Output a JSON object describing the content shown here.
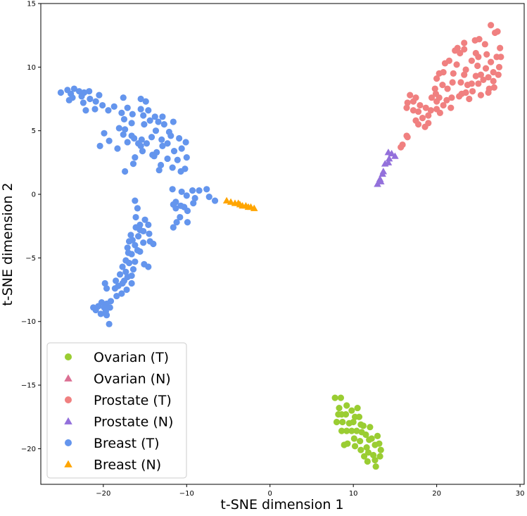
{
  "chart_data": {
    "type": "scatter",
    "title": "",
    "xlabel": "t-SNE dimension 1",
    "ylabel": "t-SNE dimension 2",
    "xlim": [
      -27.5,
      30.5
    ],
    "ylim": [
      -22.8,
      15
    ],
    "xticks": [
      -20,
      -10,
      0,
      10,
      20,
      30
    ],
    "yticks": [
      -20,
      -15,
      -10,
      -5,
      0,
      5,
      10,
      15
    ],
    "xtick_labels": [
      "−20",
      "−10",
      "0",
      "10",
      "20",
      "30"
    ],
    "ytick_labels": [
      "−20",
      "−15",
      "−10",
      "−5",
      "0",
      "5",
      "10",
      "15"
    ],
    "grid": false,
    "legend_position": "lower-left",
    "series": [
      {
        "name": "Ovarian (T)",
        "marker": "circle",
        "color": "#9acd32",
        "points": [
          [
            7.8,
            -16.0
          ],
          [
            8.5,
            -16.0
          ],
          [
            8.3,
            -16.8
          ],
          [
            9.2,
            -16.6
          ],
          [
            8.6,
            -17.3
          ],
          [
            9.8,
            -17.0
          ],
          [
            10.5,
            -16.8
          ],
          [
            8.2,
            -17.3
          ],
          [
            9.1,
            -17.3
          ],
          [
            10.2,
            -17.5
          ],
          [
            10.7,
            -17.5
          ],
          [
            8.0,
            -17.9
          ],
          [
            8.7,
            -17.9
          ],
          [
            9.5,
            -18.0
          ],
          [
            10.0,
            -17.9
          ],
          [
            10.9,
            -18.1
          ],
          [
            11.2,
            -18.2
          ],
          [
            9.2,
            -18.6
          ],
          [
            9.8,
            -18.6
          ],
          [
            10.4,
            -18.6
          ],
          [
            11.0,
            -18.7
          ],
          [
            12.0,
            -18.3
          ],
          [
            8.6,
            -18.6
          ],
          [
            11.5,
            -18.9
          ],
          [
            12.2,
            -19.2
          ],
          [
            12.9,
            -19.0
          ],
          [
            10.1,
            -19.2
          ],
          [
            10.8,
            -19.4
          ],
          [
            11.9,
            -19.3
          ],
          [
            9.3,
            -19.6
          ],
          [
            10.2,
            -19.8
          ],
          [
            11.6,
            -19.9
          ],
          [
            12.6,
            -19.7
          ],
          [
            13.1,
            -19.6
          ],
          [
            8.9,
            -19.7
          ],
          [
            10.9,
            -20.1
          ],
          [
            11.8,
            -20.3
          ],
          [
            12.4,
            -20.5
          ],
          [
            13.3,
            -20.1
          ],
          [
            11.3,
            -20.6
          ],
          [
            12.6,
            -20.9
          ],
          [
            11.7,
            -21.0
          ],
          [
            13.2,
            -20.6
          ],
          [
            12.7,
            -21.4
          ]
        ]
      },
      {
        "name": "Ovarian (N)",
        "marker": "triangle",
        "color": "#db7093",
        "points": []
      },
      {
        "name": "Prostate (T)",
        "marker": "circle",
        "color": "#f08080",
        "points": [
          [
            26.5,
            13.3
          ],
          [
            27.3,
            12.8
          ],
          [
            27.0,
            12.7
          ],
          [
            25.1,
            12.2
          ],
          [
            24.6,
            12.1
          ],
          [
            23.3,
            11.9
          ],
          [
            25.8,
            11.8
          ],
          [
            22.5,
            11.5
          ],
          [
            27.6,
            11.5
          ],
          [
            23.3,
            11.4
          ],
          [
            22.2,
            11.3
          ],
          [
            22.8,
            11.1
          ],
          [
            24.7,
            11.1
          ],
          [
            26.0,
            11.0
          ],
          [
            25.0,
            10.8
          ],
          [
            27.2,
            10.8
          ],
          [
            27.7,
            10.8
          ],
          [
            21.0,
            10.3
          ],
          [
            21.5,
            10.5
          ],
          [
            24.2,
            10.5
          ],
          [
            26.5,
            10.4
          ],
          [
            22.4,
            10.2
          ],
          [
            24.9,
            10.1
          ],
          [
            27.5,
            10.0
          ],
          [
            25.9,
            9.9
          ],
          [
            23.5,
            9.8
          ],
          [
            20.8,
            9.6
          ],
          [
            20.3,
            9.5
          ],
          [
            26.8,
            9.6
          ],
          [
            22.0,
            9.5
          ],
          [
            23.3,
            9.4
          ],
          [
            25.3,
            9.4
          ],
          [
            27.4,
            9.4
          ],
          [
            24.7,
            9.3
          ],
          [
            20.0,
            9.1
          ],
          [
            26.2,
            9.2
          ],
          [
            25.6,
            9.0
          ],
          [
            26.8,
            8.9
          ],
          [
            22.9,
            8.8
          ],
          [
            24.2,
            8.7
          ],
          [
            23.7,
            8.6
          ],
          [
            21.9,
            8.8
          ],
          [
            25.0,
            8.7
          ],
          [
            20.7,
            8.6
          ],
          [
            19.8,
            8.3
          ],
          [
            26.3,
            8.3
          ],
          [
            21.3,
            8.3
          ],
          [
            24.3,
            8.1
          ],
          [
            26.9,
            8.4
          ],
          [
            23.5,
            8.0
          ],
          [
            26.2,
            8.0
          ],
          [
            19.9,
            7.9
          ],
          [
            23.0,
            7.9
          ],
          [
            25.3,
            7.8
          ],
          [
            19.4,
            7.6
          ],
          [
            21.8,
            7.6
          ],
          [
            22.7,
            7.7
          ],
          [
            16.8,
            7.8
          ],
          [
            17.5,
            7.6
          ],
          [
            20.3,
            7.6
          ],
          [
            16.5,
            7.2
          ],
          [
            17.2,
            7.3
          ],
          [
            20.0,
            7.3
          ],
          [
            21.2,
            7.4
          ],
          [
            23.9,
            7.5
          ],
          [
            18.0,
            7.0
          ],
          [
            20.8,
            7.0
          ],
          [
            18.7,
            6.8
          ],
          [
            21.7,
            6.8
          ],
          [
            20.0,
            6.7
          ],
          [
            16.4,
            6.8
          ],
          [
            17.2,
            6.6
          ],
          [
            17.8,
            6.5
          ],
          [
            19.3,
            6.6
          ],
          [
            20.4,
            6.4
          ],
          [
            19.0,
            6.2
          ],
          [
            18.3,
            6.0
          ],
          [
            17.5,
            5.8
          ],
          [
            17.8,
            5.5
          ],
          [
            19.0,
            5.6
          ],
          [
            18.6,
            5.3
          ],
          [
            16.4,
            4.6
          ],
          [
            16.5,
            4.5
          ],
          [
            15.9,
            3.9
          ],
          [
            15.7,
            3.7
          ]
        ]
      },
      {
        "name": "Prostate (N)",
        "marker": "triangle",
        "color": "#9370db",
        "points": [
          [
            14.2,
            3.3
          ],
          [
            14.6,
            3.2
          ],
          [
            15.0,
            3.0
          ],
          [
            14.3,
            2.8
          ],
          [
            14.2,
            2.5
          ],
          [
            13.8,
            2.4
          ],
          [
            13.6,
            1.8
          ],
          [
            13.5,
            1.6
          ],
          [
            13.2,
            1.2
          ],
          [
            13.3,
            1.0
          ],
          [
            12.9,
            0.8
          ]
        ]
      },
      {
        "name": "Breast (T)",
        "marker": "circle",
        "color": "#6495ed",
        "points": [
          [
            -24.3,
            8.2
          ],
          [
            -23.5,
            8.3
          ],
          [
            -22.9,
            8.1
          ],
          [
            -22.3,
            8.0
          ],
          [
            -21.7,
            8.1
          ],
          [
            -25.1,
            8.0
          ],
          [
            -23.9,
            7.9
          ],
          [
            -22.6,
            7.7
          ],
          [
            -21.6,
            7.5
          ],
          [
            -20.5,
            7.8
          ],
          [
            -17.6,
            7.6
          ],
          [
            -15.5,
            7.5
          ],
          [
            -14.9,
            7.3
          ],
          [
            -20.9,
            7.3
          ],
          [
            -22.4,
            7.2
          ],
          [
            -23.7,
            7.6
          ],
          [
            -24.1,
            7.4
          ],
          [
            -21.0,
            6.7
          ],
          [
            -20.1,
            7.0
          ],
          [
            -18.7,
            6.9
          ],
          [
            -17.1,
            6.8
          ],
          [
            -15.5,
            6.7
          ],
          [
            -14.6,
            6.6
          ],
          [
            -19.4,
            6.6
          ],
          [
            -22.1,
            6.6
          ],
          [
            -17.8,
            6.4
          ],
          [
            -16.5,
            6.3
          ],
          [
            -15.2,
            6.2
          ],
          [
            -13.8,
            6.1
          ],
          [
            -12.9,
            6.1
          ],
          [
            -17.5,
            5.9
          ],
          [
            -14.4,
            5.8
          ],
          [
            -13.4,
            5.7
          ],
          [
            -11.6,
            5.7
          ],
          [
            -16.6,
            5.6
          ],
          [
            -15.1,
            5.5
          ],
          [
            -12.7,
            5.5
          ],
          [
            -18.1,
            5.2
          ],
          [
            -17.4,
            5.1
          ],
          [
            -13.7,
            5.0
          ],
          [
            -12.1,
            4.9
          ],
          [
            -19.9,
            4.8
          ],
          [
            -17.6,
            4.7
          ],
          [
            -16.6,
            4.6
          ],
          [
            -14.2,
            4.5
          ],
          [
            -11.9,
            4.6
          ],
          [
            -16.3,
            4.4
          ],
          [
            -15.4,
            4.3
          ],
          [
            -13.0,
            4.3
          ],
          [
            -10.9,
            4.4
          ],
          [
            -19.3,
            4.2
          ],
          [
            -17.1,
            4.1
          ],
          [
            -15.8,
            4.0
          ],
          [
            -14.8,
            4.0
          ],
          [
            -12.3,
            4.0
          ],
          [
            -10.1,
            4.1
          ],
          [
            -15.5,
            3.8
          ],
          [
            -12.9,
            3.8
          ],
          [
            -20.4,
            3.8
          ],
          [
            -18.3,
            3.6
          ],
          [
            -15.3,
            3.4
          ],
          [
            -13.6,
            3.3
          ],
          [
            -11.5,
            3.4
          ],
          [
            -10.6,
            3.6
          ],
          [
            -14.1,
            3.1
          ],
          [
            -13.9,
            3.0
          ],
          [
            -16.2,
            2.9
          ],
          [
            -12.3,
            2.8
          ],
          [
            -11.1,
            2.7
          ],
          [
            -16.4,
            2.4
          ],
          [
            -10.0,
            2.9
          ],
          [
            -13.1,
            2.3
          ],
          [
            -10.2,
            2.0
          ],
          [
            -17.4,
            1.8
          ],
          [
            -11.7,
            2.1
          ],
          [
            -13.3,
            1.9
          ],
          [
            -10.7,
            1.8
          ],
          [
            -7.6,
            0.4
          ],
          [
            -8.5,
            0.3
          ],
          [
            -9.3,
            0.3
          ],
          [
            -10.6,
            0.2
          ],
          [
            -11.7,
            0.4
          ],
          [
            -10.0,
            -0.1
          ],
          [
            -7.3,
            -0.2
          ],
          [
            -9.0,
            -0.3
          ],
          [
            -11.3,
            -0.6
          ],
          [
            -10.7,
            -0.9
          ],
          [
            -11.6,
            -0.8
          ],
          [
            -9.2,
            -0.7
          ],
          [
            -10.3,
            -1.0
          ],
          [
            -11.3,
            -1.1
          ],
          [
            -9.9,
            -1.3
          ],
          [
            -6.6,
            -0.5
          ],
          [
            -10.8,
            -1.8
          ],
          [
            -11.2,
            -2.2
          ],
          [
            -9.9,
            -2.2
          ],
          [
            -11.6,
            -2.6
          ],
          [
            -16.2,
            -0.5
          ],
          [
            -15.9,
            -1.1
          ],
          [
            -16.1,
            -1.8
          ],
          [
            -15.0,
            -2.0
          ],
          [
            -15.6,
            -2.4
          ],
          [
            -14.6,
            -2.4
          ],
          [
            -15.2,
            -2.9
          ],
          [
            -14.5,
            -3.1
          ],
          [
            -16.1,
            -2.6
          ],
          [
            -15.6,
            -2.8
          ],
          [
            -15.8,
            -3.3
          ],
          [
            -16.7,
            -3.2
          ],
          [
            -14.4,
            -3.7
          ],
          [
            -14.0,
            -3.9
          ],
          [
            -16.9,
            -3.7
          ],
          [
            -16.5,
            -3.6
          ],
          [
            -15.2,
            -3.8
          ],
          [
            -16.2,
            -4.0
          ],
          [
            -17.1,
            -4.2
          ],
          [
            -15.9,
            -4.4
          ],
          [
            -17.0,
            -4.6
          ],
          [
            -16.6,
            -4.7
          ],
          [
            -15.6,
            -4.5
          ],
          [
            -17.3,
            -5.2
          ],
          [
            -16.2,
            -5.3
          ],
          [
            -15.1,
            -5.5
          ],
          [
            -16.9,
            -5.4
          ],
          [
            -17.7,
            -5.7
          ],
          [
            -14.6,
            -5.7
          ],
          [
            -16.4,
            -5.9
          ],
          [
            -17.3,
            -6.1
          ],
          [
            -18.0,
            -6.3
          ],
          [
            -17.1,
            -6.5
          ],
          [
            -16.6,
            -6.4
          ],
          [
            -17.5,
            -6.8
          ],
          [
            -18.5,
            -6.8
          ],
          [
            -16.6,
            -7.0
          ],
          [
            -17.7,
            -7.0
          ],
          [
            -18.2,
            -7.2
          ],
          [
            -19.8,
            -7.0
          ],
          [
            -19.6,
            -7.4
          ],
          [
            -17.2,
            -7.5
          ],
          [
            -18.6,
            -7.4
          ],
          [
            -17.8,
            -7.8
          ],
          [
            -18.4,
            -8.0
          ],
          [
            -19.1,
            -8.4
          ],
          [
            -20.2,
            -8.5
          ],
          [
            -19.6,
            -8.6
          ],
          [
            -19.9,
            -8.9
          ],
          [
            -19.2,
            -8.9
          ],
          [
            -20.6,
            -8.8
          ],
          [
            -21.2,
            -8.9
          ],
          [
            -20.9,
            -9.1
          ],
          [
            -19.7,
            -9.2
          ],
          [
            -20.3,
            -9.4
          ],
          [
            -19.6,
            -9.5
          ],
          [
            -19.3,
            -10.2
          ]
        ]
      },
      {
        "name": "Breast (N)",
        "marker": "triangle",
        "color": "#ffa500",
        "points": [
          [
            -5.2,
            -0.5
          ],
          [
            -4.7,
            -0.6
          ],
          [
            -4.2,
            -0.7
          ],
          [
            -3.8,
            -0.7
          ],
          [
            -3.6,
            -0.8
          ],
          [
            -3.3,
            -0.9
          ],
          [
            -2.9,
            -0.9
          ],
          [
            -2.6,
            -1.0
          ],
          [
            -2.3,
            -1.0
          ],
          [
            -1.9,
            -1.1
          ]
        ]
      }
    ]
  }
}
